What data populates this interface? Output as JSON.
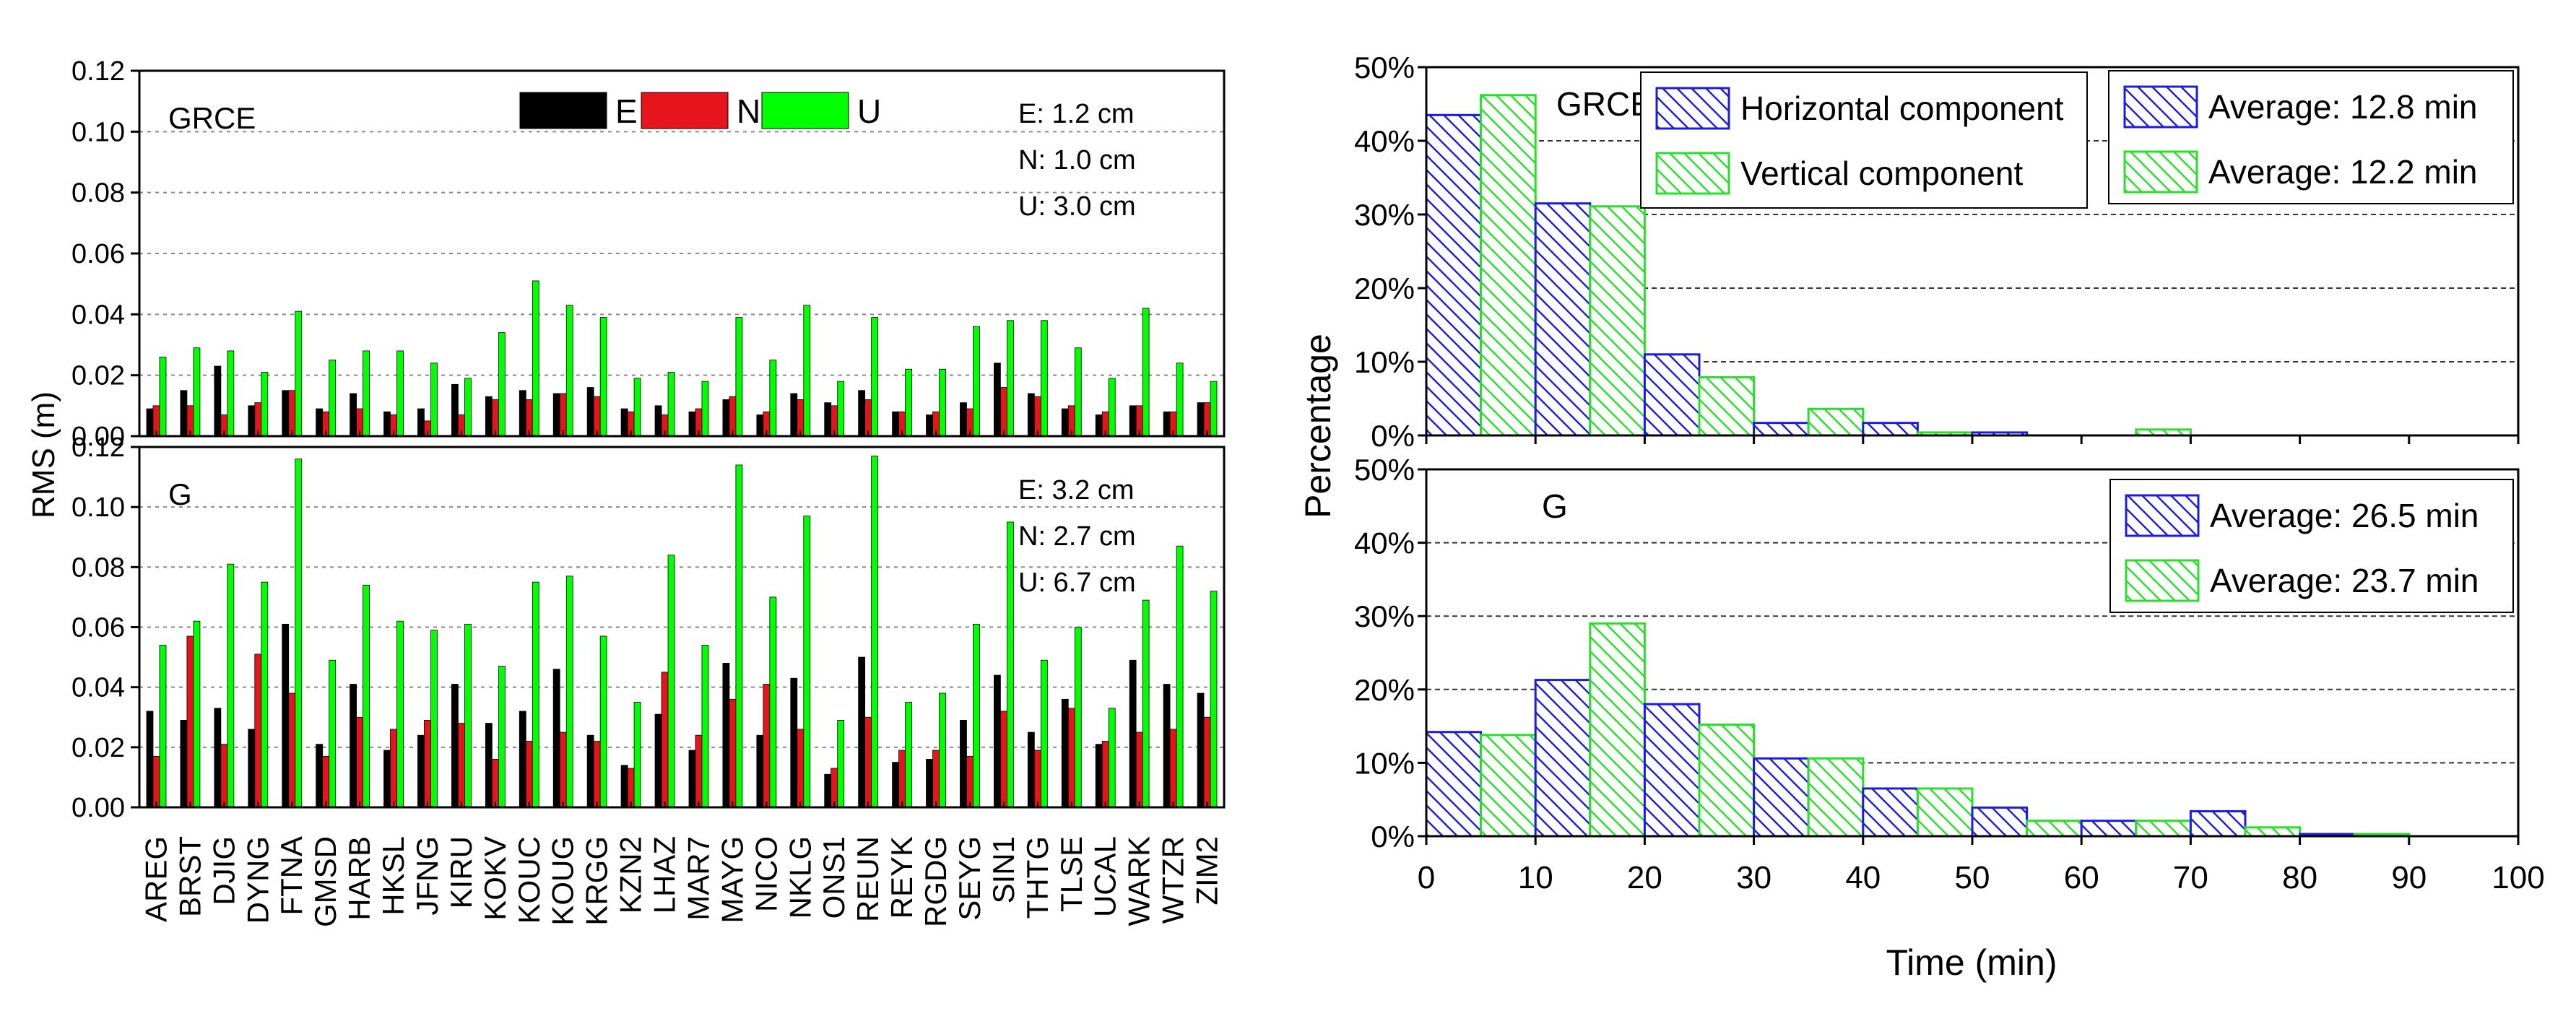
{
  "colors": {
    "E": "#000000",
    "N": "#e8141b",
    "U": "#00ff00",
    "horizontal": "#1c1ce0",
    "vertical": "#28e028",
    "grid": "#555555"
  },
  "left_panel": {
    "ylabel": "RMS (m)",
    "legend": {
      "E": "E",
      "N": "N",
      "U": "U"
    }
  },
  "right_panel": {
    "ylabel": "Percentage",
    "xlabel": "Time (min)",
    "legend": {
      "horizontal": "Horizontal component",
      "vertical": "Vertical component"
    }
  },
  "chart_data": [
    {
      "type": "bar",
      "panel": "left-top",
      "title": "GRCE",
      "ylabel": "RMS (m)",
      "ylim": [
        0,
        0.12
      ],
      "yticks": [
        0.0,
        0.02,
        0.04,
        0.06,
        0.08,
        0.1,
        0.12
      ],
      "ytick_labels": [
        "0.00",
        "0.02",
        "0.04",
        "0.06",
        "0.08",
        "0.10",
        "0.12"
      ],
      "stats": [
        "E: 1.2 cm",
        "N: 1.0 cm",
        "U: 3.0 cm"
      ],
      "categories": [
        "AREG",
        "BRST",
        "DJIG",
        "DYNG",
        "FTNA",
        "GMSD",
        "HARB",
        "HKSL",
        "JFNG",
        "KIRU",
        "KOKV",
        "KOUC",
        "KOUG",
        "KRGG",
        "KZN2",
        "LHAZ",
        "MAR7",
        "MAYG",
        "NICO",
        "NKLG",
        "ONS1",
        "REUN",
        "REYK",
        "RGDG",
        "SEYG",
        "SIN1",
        "THTG",
        "TLSE",
        "UCAL",
        "WARK",
        "WTZR",
        "ZIM2"
      ],
      "series": [
        {
          "name": "E",
          "values": [
            0.009,
            0.015,
            0.023,
            0.01,
            0.015,
            0.009,
            0.014,
            0.008,
            0.009,
            0.017,
            0.013,
            0.015,
            0.014,
            0.016,
            0.009,
            0.01,
            0.008,
            0.012,
            0.007,
            0.014,
            0.011,
            0.015,
            0.008,
            0.007,
            0.011,
            0.024,
            0.014,
            0.009,
            0.007,
            0.01,
            0.008,
            0.011
          ]
        },
        {
          "name": "N",
          "values": [
            0.01,
            0.01,
            0.007,
            0.011,
            0.015,
            0.008,
            0.009,
            0.007,
            0.005,
            0.007,
            0.012,
            0.012,
            0.014,
            0.013,
            0.008,
            0.007,
            0.009,
            0.013,
            0.008,
            0.012,
            0.01,
            0.012,
            0.008,
            0.008,
            0.009,
            0.016,
            0.013,
            0.01,
            0.008,
            0.01,
            0.008,
            0.011
          ]
        },
        {
          "name": "U",
          "values": [
            0.026,
            0.029,
            0.028,
            0.021,
            0.041,
            0.025,
            0.028,
            0.028,
            0.024,
            0.019,
            0.034,
            0.051,
            0.043,
            0.039,
            0.019,
            0.021,
            0.018,
            0.039,
            0.025,
            0.043,
            0.018,
            0.039,
            0.022,
            0.022,
            0.036,
            0.038,
            0.038,
            0.029,
            0.019,
            0.042,
            0.024,
            0.018
          ]
        }
      ]
    },
    {
      "type": "bar",
      "panel": "left-bottom",
      "title": "G",
      "ylabel": "RMS (m)",
      "ylim": [
        0,
        0.12
      ],
      "yticks": [
        0.0,
        0.02,
        0.04,
        0.06,
        0.08,
        0.1,
        0.12
      ],
      "ytick_labels": [
        "0.00",
        "0.02",
        "0.04",
        "0.06",
        "0.08",
        "0.10",
        "0.12"
      ],
      "stats": [
        "E: 3.2 cm",
        "N: 2.7 cm",
        "U: 6.7 cm"
      ],
      "categories": [
        "AREG",
        "BRST",
        "DJIG",
        "DYNG",
        "FTNA",
        "GMSD",
        "HARB",
        "HKSL",
        "JFNG",
        "KIRU",
        "KOKV",
        "KOUC",
        "KOUG",
        "KRGG",
        "KZN2",
        "LHAZ",
        "MAR7",
        "MAYG",
        "NICO",
        "NKLG",
        "ONS1",
        "REUN",
        "REYK",
        "RGDG",
        "SEYG",
        "SIN1",
        "THTG",
        "TLSE",
        "UCAL",
        "WARK",
        "WTZR",
        "ZIM2"
      ],
      "series": [
        {
          "name": "E",
          "values": [
            0.032,
            0.029,
            0.033,
            0.026,
            0.061,
            0.021,
            0.041,
            0.019,
            0.024,
            0.041,
            0.028,
            0.032,
            0.046,
            0.024,
            0.014,
            0.031,
            0.019,
            0.048,
            0.024,
            0.043,
            0.011,
            0.05,
            0.015,
            0.016,
            0.029,
            0.044,
            0.025,
            0.036,
            0.021,
            0.049,
            0.041,
            0.038
          ]
        },
        {
          "name": "N",
          "values": [
            0.017,
            0.057,
            0.021,
            0.051,
            0.038,
            0.017,
            0.03,
            0.026,
            0.029,
            0.028,
            0.016,
            0.022,
            0.025,
            0.022,
            0.013,
            0.045,
            0.024,
            0.036,
            0.041,
            0.026,
            0.013,
            0.03,
            0.019,
            0.019,
            0.017,
            0.032,
            0.019,
            0.033,
            0.022,
            0.025,
            0.026,
            0.03
          ]
        },
        {
          "name": "U",
          "values": [
            0.054,
            0.062,
            0.081,
            0.075,
            0.116,
            0.049,
            0.074,
            0.062,
            0.059,
            0.061,
            0.047,
            0.075,
            0.077,
            0.057,
            0.035,
            0.084,
            0.054,
            0.114,
            0.07,
            0.097,
            0.029,
            0.117,
            0.035,
            0.038,
            0.061,
            0.095,
            0.049,
            0.06,
            0.033,
            0.069,
            0.087,
            0.072
          ]
        }
      ]
    },
    {
      "type": "bar",
      "panel": "right-top",
      "title": "GRCE",
      "ylabel": "Percentage",
      "xlabel": "Time (min)",
      "xlim": [
        0,
        100
      ],
      "xticks": [
        0,
        10,
        20,
        30,
        40,
        50,
        60,
        70,
        80,
        90,
        100
      ],
      "ylim": [
        0,
        50
      ],
      "yticks": [
        0,
        10,
        20,
        30,
        40,
        50
      ],
      "ytick_labels": [
        "0%",
        "10%",
        "20%",
        "30%",
        "40%",
        "50%"
      ],
      "bin_starts": [
        0,
        10,
        20,
        30,
        40,
        50,
        60,
        70,
        80,
        90
      ],
      "series": [
        {
          "name": "Horizontal component",
          "average": "Average: 12.8 min",
          "values": [
            43.5,
            31.5,
            11.0,
            1.7,
            1.7,
            0.4,
            0,
            0,
            0,
            0
          ]
        },
        {
          "name": "Vertical component",
          "average": "Average: 12.2 min",
          "values": [
            46.2,
            31.1,
            7.9,
            3.6,
            0.4,
            0,
            0.8,
            0,
            0,
            0
          ]
        }
      ]
    },
    {
      "type": "bar",
      "panel": "right-bottom",
      "title": "G",
      "ylabel": "Percentage",
      "xlabel": "Time (min)",
      "xlim": [
        0,
        100
      ],
      "xticks": [
        0,
        10,
        20,
        30,
        40,
        50,
        60,
        70,
        80,
        90,
        100
      ],
      "ylim": [
        0,
        50
      ],
      "yticks": [
        0,
        10,
        20,
        30,
        40,
        50
      ],
      "ytick_labels": [
        "0%",
        "10%",
        "20%",
        "30%",
        "40%",
        "50%"
      ],
      "bin_starts": [
        0,
        10,
        20,
        30,
        40,
        50,
        60,
        70,
        80,
        90
      ],
      "series": [
        {
          "name": "Horizontal component",
          "average": "Average: 26.5 min",
          "values": [
            14.2,
            21.3,
            18.0,
            10.6,
            6.5,
            3.9,
            2.1,
            3.4,
            0.3,
            0
          ]
        },
        {
          "name": "Vertical component",
          "average": "Average: 23.7 min",
          "values": [
            13.8,
            29.0,
            15.2,
            10.6,
            6.5,
            2.1,
            2.1,
            1.2,
            0.3,
            0
          ]
        }
      ]
    }
  ]
}
